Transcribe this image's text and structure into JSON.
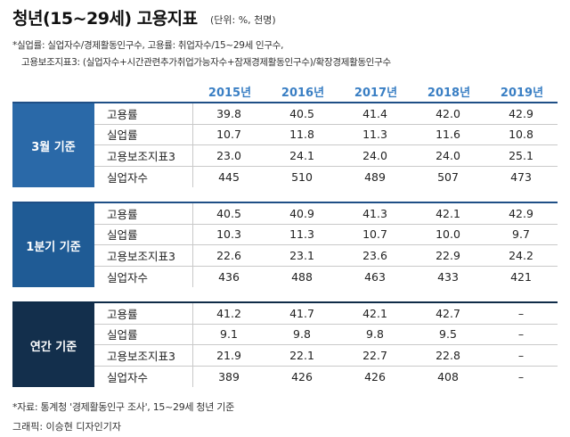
{
  "header": {
    "title": "청년(15~29세) 고용지표",
    "unit": "(단위: %, 천명)",
    "note1": "*실업률: 실업자수/경제활동인구수, 고용률: 취업자수/15~29세 인구수,",
    "note2": "고용보조지표3: (실업자수+시간관련추가취업가능자수+잠재경제활동인구수)/확장경제활동인구수"
  },
  "footer": {
    "source": "*자료: 통계청 '경제활동인구 조사', 15~29세 청년 기준",
    "credit": "그래픽: 이승현 디자인기자"
  },
  "chart_data": {
    "type": "table",
    "title": "청년(15~29세) 고용지표",
    "columns": [
      "2015년",
      "2016년",
      "2017년",
      "2018년",
      "2019년"
    ],
    "groups": [
      {
        "name": "3월 기준",
        "rows": [
          {
            "label": "고용률",
            "values": [
              "39.8",
              "40.5",
              "41.4",
              "42.0",
              "42.9"
            ]
          },
          {
            "label": "실업률",
            "values": [
              "10.7",
              "11.8",
              "11.3",
              "11.6",
              "10.8"
            ]
          },
          {
            "label": "고용보조지표3",
            "values": [
              "23.0",
              "24.1",
              "24.0",
              "24.0",
              "25.1"
            ]
          },
          {
            "label": "실업자수",
            "values": [
              "445",
              "510",
              "489",
              "507",
              "473"
            ]
          }
        ]
      },
      {
        "name": "1분기 기준",
        "rows": [
          {
            "label": "고용률",
            "values": [
              "40.5",
              "40.9",
              "41.3",
              "42.1",
              "42.9"
            ]
          },
          {
            "label": "실업률",
            "values": [
              "10.3",
              "11.3",
              "10.7",
              "10.0",
              "9.7"
            ]
          },
          {
            "label": "고용보조지표3",
            "values": [
              "22.6",
              "23.1",
              "23.6",
              "22.9",
              "24.2"
            ]
          },
          {
            "label": "실업자수",
            "values": [
              "436",
              "488",
              "463",
              "433",
              "421"
            ]
          }
        ]
      },
      {
        "name": "연간 기준",
        "rows": [
          {
            "label": "고용률",
            "values": [
              "41.2",
              "41.7",
              "42.1",
              "42.7",
              "–"
            ]
          },
          {
            "label": "실업률",
            "values": [
              "9.1",
              "9.8",
              "9.8",
              "9.5",
              "–"
            ]
          },
          {
            "label": "고용보조지표3",
            "values": [
              "21.9",
              "22.1",
              "22.7",
              "22.8",
              "–"
            ]
          },
          {
            "label": "실업자수",
            "values": [
              "389",
              "426",
              "426",
              "408",
              "–"
            ]
          }
        ]
      }
    ]
  }
}
